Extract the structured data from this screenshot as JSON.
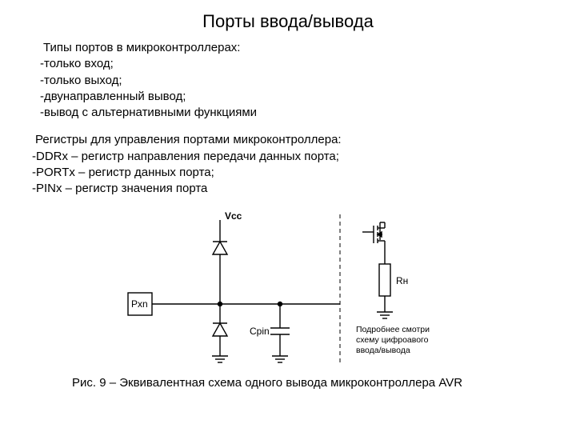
{
  "title": "Порты ввода/вывода",
  "types": {
    "lead": "Типы портов в микроконтроллерах:",
    "items": [
      "-только вход;",
      "-только выход;",
      "-двунаправленный вывод;",
      "-вывод с альтернативными функциями"
    ]
  },
  "registers": {
    "lead": "Регистры для управления портами микроконтроллера:",
    "items": [
      "-DDRx – регистр направления передачи данных порта;",
      "-PORTx – регистр данных порта;",
      "-PINx – регистр значения порта"
    ]
  },
  "schematic": {
    "label_pin": "Pxn",
    "label_vcc": "Vcc",
    "label_cpin": "Cpin",
    "label_rn": "Rн",
    "note_line1": "Подробнее смотри",
    "note_line2": "схему цифроавого",
    "note_line3": "ввода/вывода",
    "stroke": "#000000",
    "stroke_width": 1.4,
    "dash": "5,4"
  },
  "caption": "Рис. 9 – Эквивалентная схема одного вывода микроконтроллера AVR"
}
